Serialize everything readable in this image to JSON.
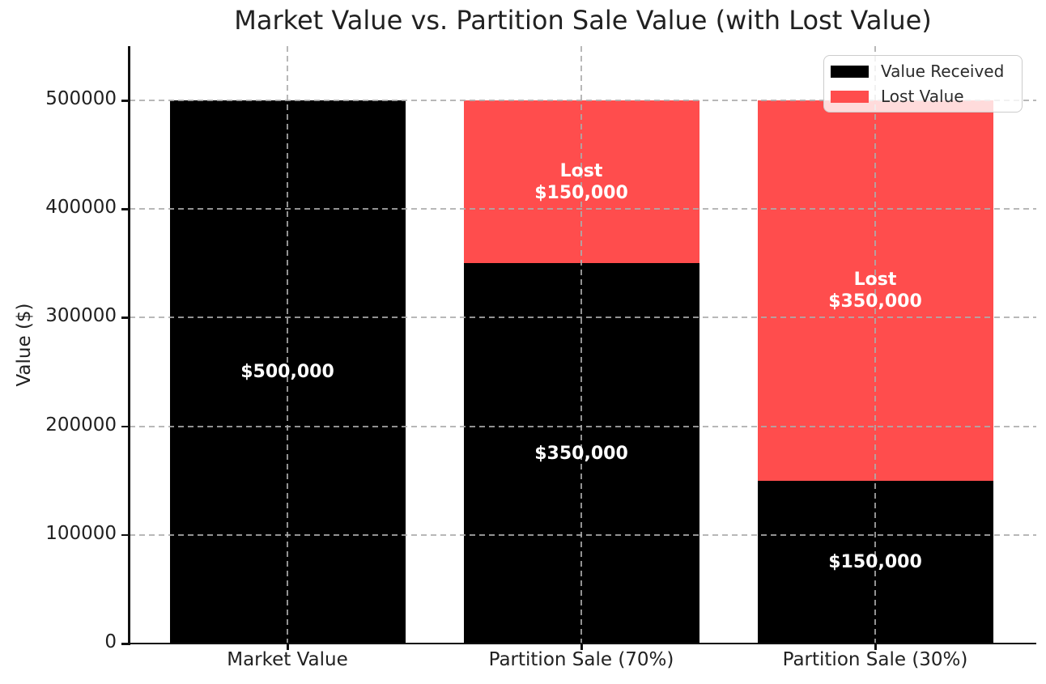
{
  "figure": {
    "title": "Market Value vs. Partition Sale Value (with Lost Value)"
  },
  "chart_data": {
    "type": "bar",
    "stacked": true,
    "title": "Market Value vs. Partition Sale Value (with Lost Value)",
    "xlabel": "",
    "ylabel": "Value ($)",
    "categories": [
      "Market Value",
      "Partition Sale (70%)",
      "Partition Sale (30%)"
    ],
    "series": [
      {
        "name": "Value Received",
        "color": "#000000",
        "values": [
          500000,
          350000,
          150000
        ],
        "bar_labels": [
          "$500,000",
          "$350,000",
          "$150,000"
        ]
      },
      {
        "name": "Lost Value",
        "color": "#FF4D4D",
        "values": [
          0,
          150000,
          350000
        ],
        "bar_labels": [
          "",
          "Lost\n$150,000",
          "Lost\n$350,000"
        ]
      }
    ],
    "ylim": [
      0,
      550000
    ],
    "yticks": [
      0,
      100000,
      200000,
      300000,
      400000,
      500000
    ],
    "ytick_labels": [
      "0",
      "100000",
      "200000",
      "300000",
      "400000",
      "500000"
    ],
    "grid": "dashed gray, horizontal and vertical, drawn above bars",
    "legend": {
      "location": "upper right",
      "entries": [
        "Value Received",
        "Lost Value"
      ]
    }
  },
  "colors": {
    "value_received": "#000000",
    "lost_value": "#FF4D4D",
    "text": "#212121",
    "grid": "#acacac",
    "bar_label_text": "#ffffff",
    "background": "#ffffff",
    "legend_border": "#cccccc",
    "spine": "#111111"
  }
}
